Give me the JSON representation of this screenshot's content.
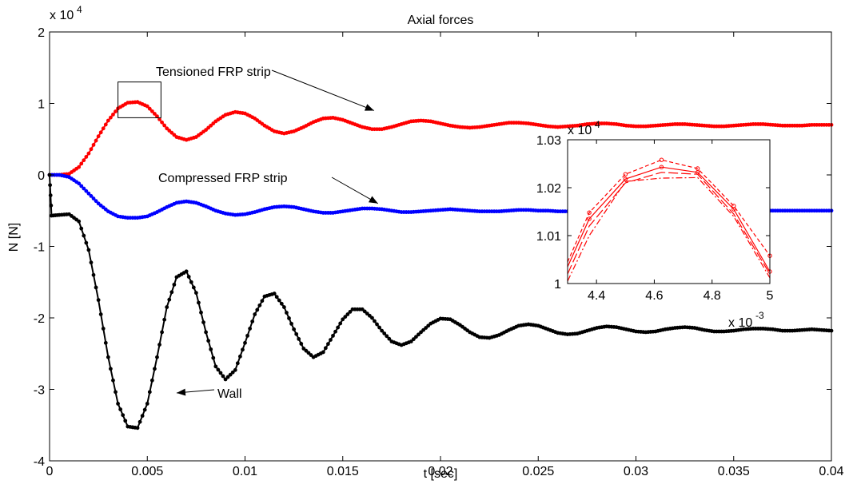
{
  "chart_data": [
    {
      "type": "line",
      "title": "Axial forces",
      "xlabel": "t [sec]",
      "ylabel": "N [N]",
      "xlim": [
        0,
        0.04
      ],
      "ylim": [
        -40000,
        20000
      ],
      "y_exponent_label": "x 10",
      "y_exponent_power": "4",
      "x_ticks": [
        0,
        0.005,
        0.01,
        0.015,
        0.02,
        0.025,
        0.03,
        0.035,
        0.04
      ],
      "x_tick_labels": [
        "0",
        "0.005",
        "0.01",
        "0.015",
        "0.02",
        "0.025",
        "0.03",
        "0.035",
        "0.04"
      ],
      "y_ticks": [
        -40000,
        -30000,
        -20000,
        -10000,
        0,
        10000,
        20000
      ],
      "y_tick_labels": [
        "-4",
        "-3",
        "-2",
        "-1",
        "0",
        "1",
        "2"
      ],
      "series": [
        {
          "name": "Tensioned FRP strip",
          "color": "#ff0000",
          "x": [
            0,
            0.0005,
            0.001,
            0.0015,
            0.002,
            0.0025,
            0.003,
            0.0035,
            0.004,
            0.0045,
            0.005,
            0.0055,
            0.006,
            0.0065,
            0.007,
            0.0075,
            0.008,
            0.0085,
            0.009,
            0.0095,
            0.01,
            0.0105,
            0.011,
            0.0115,
            0.012,
            0.0125,
            0.013,
            0.0135,
            0.014,
            0.0145,
            0.015,
            0.0155,
            0.016,
            0.0165,
            0.017,
            0.0175,
            0.018,
            0.0185,
            0.019,
            0.0195,
            0.02,
            0.0205,
            0.021,
            0.0215,
            0.022,
            0.0225,
            0.023,
            0.0235,
            0.024,
            0.0245,
            0.025,
            0.0255,
            0.026,
            0.0265,
            0.027,
            0.0275,
            0.028,
            0.0285,
            0.029,
            0.0295,
            0.03,
            0.0305,
            0.031,
            0.0315,
            0.032,
            0.0325,
            0.033,
            0.0335,
            0.034,
            0.0345,
            0.035,
            0.0355,
            0.036,
            0.0365,
            0.037,
            0.0375,
            0.038,
            0.0385,
            0.039,
            0.0395,
            0.04
          ],
          "y": [
            0,
            0,
            150,
            1100,
            3000,
            5400,
            7600,
            9300,
            10100,
            10200,
            9600,
            8200,
            6500,
            5300,
            4900,
            5300,
            6300,
            7500,
            8400,
            8800,
            8600,
            7900,
            6900,
            6100,
            5800,
            6100,
            6700,
            7400,
            7900,
            8000,
            7700,
            7200,
            6700,
            6400,
            6400,
            6700,
            7100,
            7500,
            7600,
            7500,
            7200,
            6900,
            6700,
            6600,
            6700,
            6900,
            7100,
            7300,
            7300,
            7200,
            7000,
            6800,
            6700,
            6800,
            6900,
            7100,
            7200,
            7200,
            7100,
            6900,
            6800,
            6800,
            6900,
            7000,
            7100,
            7100,
            7000,
            6900,
            6800,
            6800,
            6900,
            7000,
            7100,
            7100,
            7000,
            6900,
            6900,
            6900,
            7000,
            7000,
            7000
          ]
        },
        {
          "name": "Compressed FRP strip",
          "color": "#0000ff",
          "x": [
            0,
            0.0005,
            0.001,
            0.0015,
            0.002,
            0.0025,
            0.003,
            0.0035,
            0.004,
            0.0045,
            0.005,
            0.0055,
            0.006,
            0.0065,
            0.007,
            0.0075,
            0.008,
            0.0085,
            0.009,
            0.0095,
            0.01,
            0.0105,
            0.011,
            0.0115,
            0.012,
            0.0125,
            0.013,
            0.0135,
            0.014,
            0.0145,
            0.015,
            0.0155,
            0.016,
            0.0165,
            0.017,
            0.0175,
            0.018,
            0.0185,
            0.019,
            0.0195,
            0.02,
            0.0205,
            0.021,
            0.0215,
            0.022,
            0.0225,
            0.023,
            0.0235,
            0.024,
            0.0245,
            0.025,
            0.0255,
            0.026,
            0.0265,
            0.027,
            0.0275,
            0.028,
            0.0285,
            0.029,
            0.0295,
            0.03,
            0.0305,
            0.031,
            0.0315,
            0.032,
            0.0325,
            0.033,
            0.0335,
            0.034,
            0.0345,
            0.035,
            0.0355,
            0.036,
            0.0365,
            0.037,
            0.0375,
            0.038,
            0.0385,
            0.039,
            0.0395,
            0.04
          ],
          "y": [
            0,
            0,
            -300,
            -1200,
            -2600,
            -4000,
            -5100,
            -5800,
            -6000,
            -6000,
            -5800,
            -5200,
            -4500,
            -3900,
            -3700,
            -3900,
            -4400,
            -5000,
            -5400,
            -5600,
            -5500,
            -5200,
            -4800,
            -4500,
            -4400,
            -4500,
            -4800,
            -5100,
            -5300,
            -5300,
            -5100,
            -4900,
            -4700,
            -4700,
            -4800,
            -5000,
            -5200,
            -5200,
            -5100,
            -5000,
            -4900,
            -4800,
            -4900,
            -5000,
            -5100,
            -5100,
            -5100,
            -5000,
            -4900,
            -4900,
            -5000,
            -5000,
            -5100,
            -5100,
            -5000,
            -5000,
            -4900,
            -5000,
            -5000,
            -5100,
            -5100,
            -5000,
            -5000,
            -5000,
            -5000,
            -5000,
            -5100,
            -5000,
            -5000,
            -5000,
            -5000,
            -5000,
            -5000,
            -5000,
            -5000,
            -5000,
            -5000,
            -5000,
            -5000,
            -5000,
            -5000
          ]
        },
        {
          "name": "Wall",
          "color": "#000000",
          "x": [
            0,
            0.0001,
            0.0005,
            0.001,
            0.0015,
            0.002,
            0.0025,
            0.003,
            0.0035,
            0.004,
            0.0045,
            0.005,
            0.0055,
            0.006,
            0.0065,
            0.007,
            0.0075,
            0.008,
            0.0085,
            0.009,
            0.0095,
            0.01,
            0.0105,
            0.011,
            0.0115,
            0.012,
            0.0125,
            0.013,
            0.0135,
            0.014,
            0.0145,
            0.015,
            0.0155,
            0.016,
            0.0165,
            0.017,
            0.0175,
            0.018,
            0.0185,
            0.019,
            0.0195,
            0.02,
            0.0205,
            0.021,
            0.0215,
            0.022,
            0.0225,
            0.023,
            0.0235,
            0.024,
            0.0245,
            0.025,
            0.0255,
            0.026,
            0.0265,
            0.027,
            0.0275,
            0.028,
            0.0285,
            0.029,
            0.0295,
            0.03,
            0.0305,
            0.031,
            0.0315,
            0.032,
            0.0325,
            0.033,
            0.0335,
            0.034,
            0.0345,
            0.035,
            0.0355,
            0.036,
            0.0365,
            0.037,
            0.0375,
            0.038,
            0.0385,
            0.039,
            0.0395,
            0.04
          ],
          "y": [
            0,
            -5700,
            -5600,
            -5500,
            -6500,
            -10500,
            -17500,
            -25500,
            -32000,
            -35200,
            -35400,
            -32000,
            -25500,
            -18500,
            -14300,
            -13500,
            -16500,
            -22000,
            -26800,
            -28600,
            -27300,
            -23500,
            -19500,
            -17000,
            -16600,
            -18500,
            -21600,
            -24300,
            -25500,
            -24800,
            -22500,
            -20200,
            -18800,
            -18800,
            -20000,
            -21800,
            -23300,
            -23800,
            -23300,
            -22000,
            -20800,
            -20100,
            -20200,
            -21000,
            -22000,
            -22700,
            -22800,
            -22400,
            -21700,
            -21100,
            -20900,
            -21100,
            -21600,
            -22100,
            -22300,
            -22200,
            -21800,
            -21400,
            -21200,
            -21300,
            -21600,
            -21900,
            -22000,
            -21900,
            -21600,
            -21400,
            -21300,
            -21400,
            -21700,
            -21900,
            -21900,
            -21800,
            -21600,
            -21500,
            -21500,
            -21600,
            -21800,
            -21800,
            -21700,
            -21600,
            -21700,
            -21800
          ]
        }
      ],
      "annotations": [
        {
          "text": "Tensioned FRP strip",
          "x": 0.0086,
          "y": 14400,
          "arrow_to_x": 0.0166,
          "arrow_to_y": 9000
        },
        {
          "text": "Compressed FRP strip",
          "x": 0.0092,
          "y": -1500,
          "arrow_to_x": 0.0168,
          "arrow_to_y": -4000
        },
        {
          "text": "Wall",
          "x": 0.0097,
          "y": -33700,
          "arrow_to_x": 0.0065,
          "arrow_to_y": -30500
        }
      ],
      "zoom_box": {
        "x": [
          0.0035,
          0.0057
        ],
        "y": [
          8000,
          13000
        ]
      }
    },
    {
      "type": "line",
      "title": "",
      "xlim": [
        4.3,
        5
      ],
      "ylim": [
        1,
        1.03
      ],
      "y_exponent_label": "x 10",
      "y_exponent_power": "4",
      "x_exponent_label": "x 10",
      "x_exponent_power": "-3",
      "x_ticks": [
        4.4,
        4.6,
        4.8,
        5
      ],
      "x_tick_labels": [
        "4.4",
        "4.6",
        "4.8",
        "5"
      ],
      "y_ticks": [
        1,
        1.01,
        1.02,
        1.03
      ],
      "y_tick_labels": [
        "1",
        "1.01",
        "1.02",
        "1.03"
      ],
      "series": [
        {
          "style": "solid",
          "color": "#ff0000",
          "markers": true,
          "x": [
            4.3,
            4.375,
            4.5,
            4.625,
            4.75,
            4.875,
            5
          ],
          "y": [
            1.0035,
            1.0135,
            1.0218,
            1.0243,
            1.0232,
            1.0155,
            1.0025
          ]
        },
        {
          "style": "dashed",
          "color": "#ff0000",
          "markers": true,
          "x": [
            4.3,
            4.375,
            4.5,
            4.625,
            4.75,
            4.875,
            5
          ],
          "y": [
            1.0045,
            1.0148,
            1.0228,
            1.0258,
            1.024,
            1.0162,
            1.0058
          ]
        },
        {
          "style": "dash-dot",
          "color": "#ff0000",
          "markers": false,
          "x": [
            4.3,
            4.375,
            4.5,
            4.625,
            4.75,
            4.875,
            5
          ],
          "y": [
            1.0005,
            1.01,
            1.0213,
            1.022,
            1.0221,
            1.014,
            1.0012
          ]
        },
        {
          "style": "long-dash",
          "color": "#ff0000",
          "markers": false,
          "x": [
            4.3,
            4.375,
            4.5,
            4.625,
            4.75,
            4.875,
            5
          ],
          "y": [
            1.002,
            1.012,
            1.021,
            1.0232,
            1.0228,
            1.0145,
            1.002
          ]
        }
      ]
    }
  ]
}
